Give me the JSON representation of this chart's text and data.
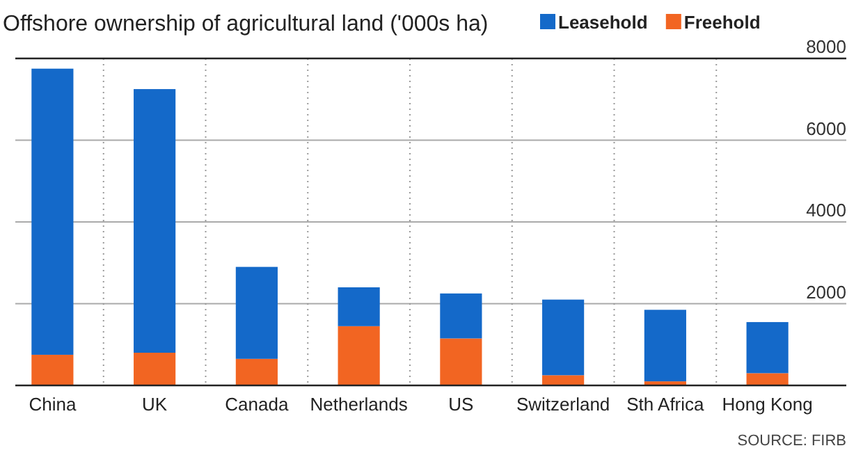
{
  "chart_data": {
    "type": "bar",
    "title": "Offshore ownership of agricultural land ('000s ha)",
    "categories": [
      "China",
      "UK",
      "Canada",
      "Netherlands",
      "US",
      "Switzerland",
      "Sth Africa",
      "Hong Kong"
    ],
    "series": [
      {
        "name": "Freehold",
        "color": "#f26522",
        "values": [
          750,
          800,
          650,
          1450,
          1150,
          250,
          100,
          300
        ]
      },
      {
        "name": "Leasehold",
        "color": "#1469c9",
        "values": [
          7000,
          6450,
          2250,
          950,
          1100,
          1850,
          1750,
          1250
        ]
      }
    ],
    "stacked": true,
    "ylim": [
      0,
      8000
    ],
    "yticks": [
      2000,
      4000,
      6000,
      8000
    ],
    "grid": true,
    "legend": "top right",
    "annotations": [
      "SOURCE: FIRB"
    ]
  }
}
